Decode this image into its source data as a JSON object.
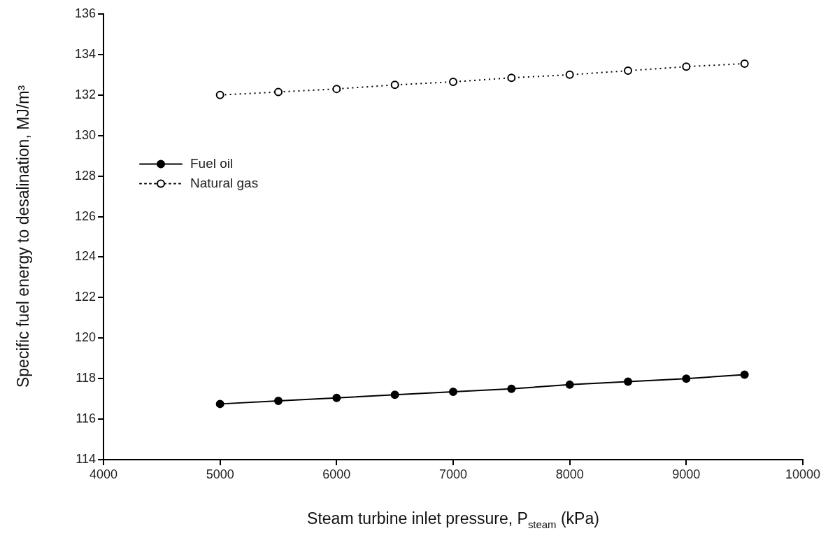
{
  "chart_data": {
    "type": "line",
    "xlabel": "Steam turbine inlet pressure, P$_{steam}$ (kPa)",
    "ylabel": "Specific fuel energy to desalination, MJ/m³",
    "x": [
      5000,
      5500,
      6000,
      6500,
      7000,
      7500,
      8000,
      8500,
      9000,
      9500
    ],
    "series": [
      {
        "name": "Fuel oil",
        "color": "#000000",
        "marker": "circle",
        "line_style": "solid",
        "values": [
          116.75,
          116.9,
          117.05,
          117.2,
          117.35,
          117.5,
          117.7,
          117.85,
          118.0,
          118.2
        ]
      },
      {
        "name": "Natural gas",
        "color": "#000000",
        "marker": "circle",
        "line_style": "dotted",
        "values": [
          132.0,
          132.15,
          132.3,
          132.5,
          132.65,
          132.85,
          133.0,
          133.2,
          133.4,
          133.55
        ]
      }
    ],
    "xlim": [
      4000,
      10000
    ],
    "xticks": [
      4000,
      5000,
      6000,
      7000,
      8000,
      9000,
      10000
    ],
    "ylim": [
      114,
      136
    ],
    "yticks": [
      114,
      116,
      118,
      120,
      122,
      124,
      126,
      128,
      130,
      132,
      134,
      136
    ],
    "grid": false,
    "legend": "center left"
  }
}
